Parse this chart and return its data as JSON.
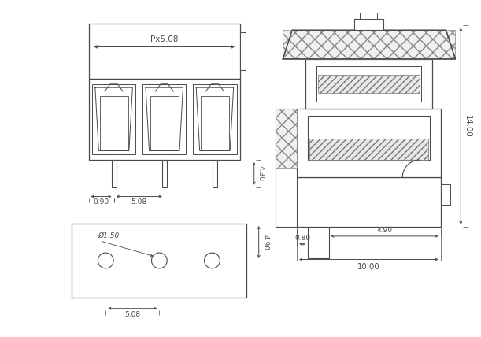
{
  "bg_color": "#ffffff",
  "lc": "#4a4a4a",
  "lc_dim": "#4a4a4a",
  "font_size": 7.0,
  "labels": {
    "px": "Px5.08",
    "dim_090": "0.90",
    "dim_508_fv": "5.08",
    "dim_430": "4.30",
    "dia_150": "Ø1.50",
    "dim_508_bv": "5.08",
    "dim_490_bv": "4.90",
    "dim_1400": "14.00",
    "dim_080": "0.80",
    "dim_490_sv": "4.90",
    "dim_1000": "10.00"
  }
}
